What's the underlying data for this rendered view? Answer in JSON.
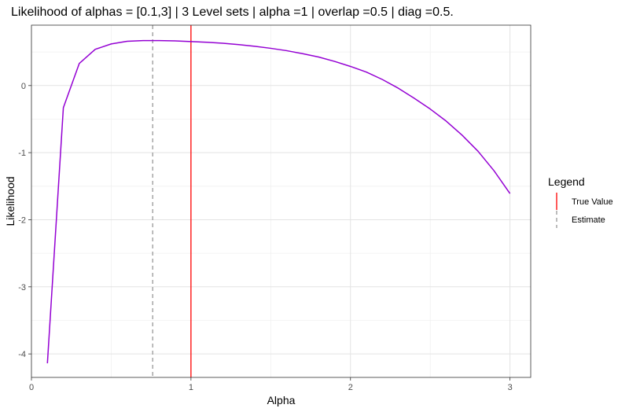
{
  "chart_data": {
    "type": "line",
    "title": "Likelihood of alphas = [0.1,3] | 3 Level sets | alpha =1 | overlap =0.5 | diag =0.5.",
    "xlabel": "Alpha",
    "ylabel": "Likelihood",
    "xlim": [
      0,
      3.13
    ],
    "ylim": [
      -4.35,
      0.9
    ],
    "x_ticks": [
      0,
      1,
      2,
      3
    ],
    "x_tick_labels": [
      "0",
      "1",
      "2",
      "3"
    ],
    "y_ticks": [
      -4,
      -3,
      -2,
      -1,
      0
    ],
    "y_tick_labels": [
      "-4",
      "-3",
      "-2",
      "-1",
      "0"
    ],
    "grid": true,
    "series": [
      {
        "color": "#9400d3",
        "x": [
          0.1,
          0.2,
          0.3,
          0.4,
          0.5,
          0.6,
          0.7,
          0.8,
          0.9,
          1.0,
          1.1,
          1.2,
          1.3,
          1.4,
          1.5,
          1.6,
          1.7,
          1.8,
          1.9,
          2.0,
          2.1,
          2.2,
          2.3,
          2.4,
          2.5,
          2.6,
          2.7,
          2.8,
          2.9,
          3.0
        ],
        "y": [
          -4.14,
          -0.33,
          0.33,
          0.54,
          0.62,
          0.66,
          0.67,
          0.67,
          0.665,
          0.655,
          0.645,
          0.63,
          0.61,
          0.585,
          0.555,
          0.52,
          0.475,
          0.425,
          0.36,
          0.285,
          0.2,
          0.09,
          -0.04,
          -0.19,
          -0.35,
          -0.53,
          -0.74,
          -0.98,
          -1.27,
          -1.61
        ]
      }
    ],
    "vlines": [
      {
        "label": "True Value",
        "x": 1.0,
        "color": "#ff0000",
        "style": "solid"
      },
      {
        "label": "Estimate",
        "x": 0.76,
        "color": "#999999",
        "style": "dashed"
      }
    ],
    "legend": {
      "title": "Legend",
      "position": "right",
      "entries": [
        {
          "label": "True Value",
          "color": "#ff0000",
          "style": "solid"
        },
        {
          "label": "Estimate",
          "color": "#999999",
          "style": "dashed"
        }
      ]
    }
  }
}
